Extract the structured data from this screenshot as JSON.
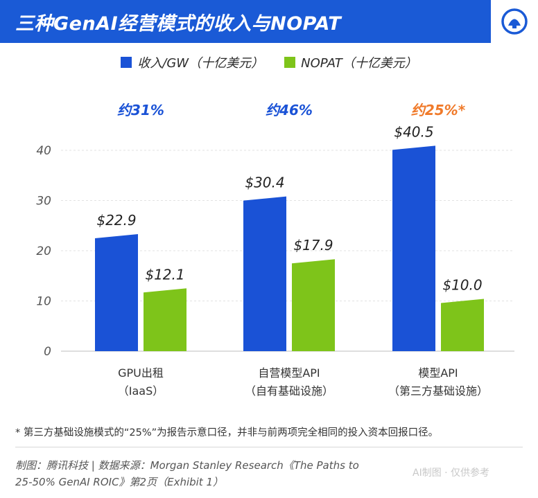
{
  "header": {
    "title": "三种GenAI经营模式的收入与NOPAT",
    "accent_color": "#1a5ad6"
  },
  "legend": {
    "items": [
      {
        "label": "收入/GW（十亿美元）",
        "color": "#1a52d6"
      },
      {
        "label": "NOPAT（十亿美元）",
        "color": "#7ec41a"
      }
    ]
  },
  "chart_data": {
    "type": "bar",
    "categories": [
      {
        "line1": "GPU出租",
        "line2": "（IaaS）"
      },
      {
        "line1": "自营模型API",
        "line2": "（自有基础设施）"
      },
      {
        "line1": "模型API",
        "line2": "（第三方基础设施）"
      }
    ],
    "series": [
      {
        "name": "收入/GW（十亿美元）",
        "values": [
          22.9,
          30.4,
          40.5
        ],
        "labels": [
          "$22.9",
          "$30.4",
          "$40.5"
        ],
        "color": "#1a52d6"
      },
      {
        "name": "NOPAT（十亿美元）",
        "values": [
          12.1,
          17.9,
          10.0
        ],
        "labels": [
          "$12.1",
          "$17.9",
          "$10.0"
        ],
        "color": "#7ec41a"
      }
    ],
    "margin_labels": [
      {
        "text": "约31%",
        "color": "#1a52d6"
      },
      {
        "text": "约46%",
        "color": "#1a52d6"
      },
      {
        "text": "约25%*",
        "color": "#f07a2a"
      }
    ],
    "yticks": [
      0,
      10,
      20,
      30,
      40
    ],
    "ylim": [
      0,
      42
    ],
    "grid": true
  },
  "footnote": "* 第三方基础设施模式的“25%”为报告示意口径，并非与前两项完全相同的投入资本回报口径。",
  "source": {
    "line1": "制图：腾讯科技 | 数据来源：Morgan Stanley Research《The Paths to",
    "line2": "25-50% GenAI ROIC》第2页（Exhibit 1）"
  },
  "watermark": "AI制图 · 仅供参考"
}
